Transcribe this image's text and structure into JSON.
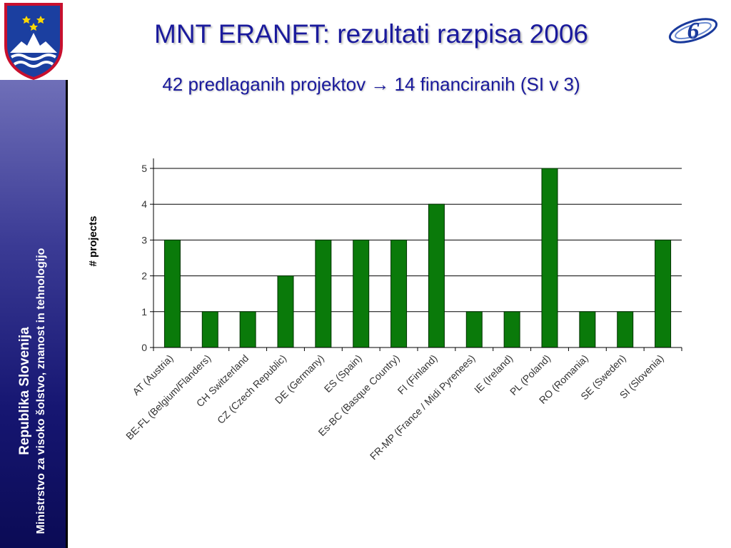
{
  "slide": {
    "title": "MNT ERANET: rezultati razpisa 2006",
    "subtitle": "42 predlaganih projektov → 14 financiranih (SI v 3)"
  },
  "sidebar": {
    "line1": "Republika Slovenija",
    "line2": "Ministrstvo za visoko šolstvo, znanost in tehnologijo"
  },
  "logos": {
    "coat_of_arms": "slovenia-coat-of-arms-icon",
    "fp6": "fp6-logo-icon"
  },
  "colors": {
    "title": "#1a1a9c",
    "bar": "#0a7a0a",
    "bar_stroke": "#003300",
    "sidebar": "#1a1a75"
  },
  "chart_data": {
    "type": "bar",
    "categories": [
      "AT (Austria)",
      "BE-FL (Belgium/Flanders)",
      "CH Switzerland",
      "CZ (Czech Republic)",
      "DE (Germany)",
      "ES (Spain)",
      "Es-BC (Basque Country)",
      "FI (Finland)",
      "FR-MP (France / Midi Pyrenees)",
      "IE (Ireland)",
      "PL (Poland)",
      "RO (Romania)",
      "SE (Sweden)",
      "SI (Slovenia)"
    ],
    "values": [
      3,
      1,
      1,
      2,
      3,
      3,
      3,
      4,
      1,
      1,
      5,
      1,
      1,
      3
    ],
    "ylabel": "# projects",
    "xlabel": "",
    "ylim": [
      0,
      5
    ],
    "yticks": [
      0,
      1,
      2,
      3,
      4,
      5
    ],
    "grid": true,
    "legend": false
  }
}
